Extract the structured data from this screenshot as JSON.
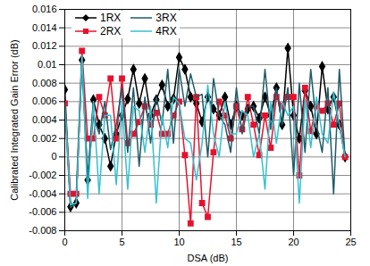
{
  "chart_data": {
    "type": "line",
    "x_label": "DSA (dB)",
    "y_label": "Calibrated Integrated Gain Error (dB)",
    "x": [
      0,
      0.5,
      1,
      1.5,
      2,
      2.5,
      3,
      3.5,
      4,
      4.5,
      5,
      5.5,
      6,
      6.5,
      7,
      7.5,
      8,
      8.5,
      9,
      9.5,
      10,
      10.5,
      11,
      11.5,
      12,
      12.5,
      13,
      13.5,
      14,
      14.5,
      15,
      15.5,
      16,
      16.5,
      17,
      17.5,
      18,
      18.5,
      19,
      19.5,
      20,
      20.5,
      21,
      21.5,
      22,
      22.5,
      23,
      23.5,
      24,
      24.5
    ],
    "series": [
      {
        "name": "1RX",
        "color": "#000000",
        "marker": "diamond",
        "values": [
          0.0073,
          -0.0054,
          -0.005,
          0.0105,
          -0.0025,
          0.0062,
          0.0035,
          0.002,
          -0.001,
          0.0025,
          0.0045,
          0.0063,
          0.0095,
          0.0058,
          0.0085,
          0.0045,
          0.0062,
          0.0078,
          0.0055,
          0.0063,
          0.0108,
          0.0095,
          0.0065,
          0.0058,
          0.0038,
          0.0065,
          0.0052,
          0.0045,
          0.0065,
          0.0035,
          0.0055,
          0.0045,
          0.0052,
          0.0055,
          0.0042,
          0.0065,
          0.0045,
          0.0075,
          0.0035,
          0.0118,
          0.0045,
          0.002,
          0.0072,
          0.0055,
          0.0025,
          0.0098,
          0.0052,
          0.0065,
          0.0035,
          0.0
        ]
      },
      {
        "name": "2RX",
        "color": "#e8112d",
        "marker": "square",
        "values": [
          0.0058,
          -0.004,
          -0.004,
          0.0115,
          0.002,
          0.002,
          0.0065,
          0.0045,
          0.0085,
          0.002,
          0.0085,
          0.0015,
          0.0025,
          0.0038,
          0.0055,
          0.0035,
          0.0048,
          0.0025,
          0.0025,
          0.0045,
          0.006,
          0.0002,
          -0.0072,
          0.0065,
          -0.005,
          -0.0065,
          0.0005,
          0.006,
          0.0045,
          0.002,
          0.0055,
          0.003,
          0.0065,
          0.0035,
          0.0002,
          0.0045,
          0.001,
          0.0065,
          0.0055,
          0.0065,
          0.0065,
          -0.002,
          0.0075,
          0.0028,
          0.0055,
          0.005,
          0.0058,
          0.0035,
          0.0058,
          0.0
        ]
      },
      {
        "name": "3RX",
        "color": "#1f5b68",
        "marker": "none",
        "values": [
          0.0055,
          -0.0055,
          -0.005,
          0.011,
          -0.0025,
          0.0045,
          0.0025,
          0.006,
          0.0008,
          0.0035,
          0.0075,
          0.0005,
          0.0075,
          -0.001,
          0.0065,
          0.0015,
          0.0065,
          0.0035,
          0.0095,
          0.0015,
          0.0095,
          0.0055,
          0.009,
          0.0065,
          0.0068,
          0.0,
          0.0085,
          0.0045,
          0.0035,
          0.0005,
          0.0075,
          0.0025,
          0.0055,
          0.0055,
          0.0025,
          0.0095,
          0.003,
          0.0075,
          0.0035,
          0.0075,
          -0.002,
          0.008,
          0.0005,
          0.0095,
          0.0035,
          0.0005,
          0.0075,
          -0.004,
          0.0095,
          0.0
        ]
      },
      {
        "name": "4RX",
        "color": "#33c1d1",
        "marker": "none",
        "values": [
          0.006,
          -0.0052,
          -0.005,
          0.011,
          -0.0045,
          0.006,
          -0.004,
          0.0045,
          0.0045,
          -0.003,
          0.006,
          -0.0035,
          0.0055,
          0.005,
          0.0005,
          0.0055,
          -0.005,
          0.0045,
          0.001,
          0.0065,
          0.0058,
          0.002,
          0.0015,
          -0.0025,
          0.0015,
          0.0078,
          0.0025,
          0.0,
          0.006,
          0.0025,
          0.0025,
          0.005,
          0.0045,
          0.0,
          0.0025,
          -0.0035,
          0.006,
          0.0015,
          0.006,
          0.0045,
          0.0055,
          -0.005,
          0.0062,
          0.001,
          0.0065,
          0.0025,
          0.0015,
          0.007,
          0.0035,
          0.0
        ]
      }
    ],
    "xlim": [
      0,
      25
    ],
    "xticks": [
      0,
      5,
      10,
      15,
      20,
      25
    ],
    "ylim": [
      -0.008,
      0.016
    ],
    "yticks": [
      -0.008,
      -0.006,
      -0.004,
      -0.002,
      0,
      0.002,
      0.004,
      0.006,
      0.008,
      0.01,
      0.012,
      0.014,
      0.016
    ],
    "grid": true,
    "legend": "upper left"
  }
}
